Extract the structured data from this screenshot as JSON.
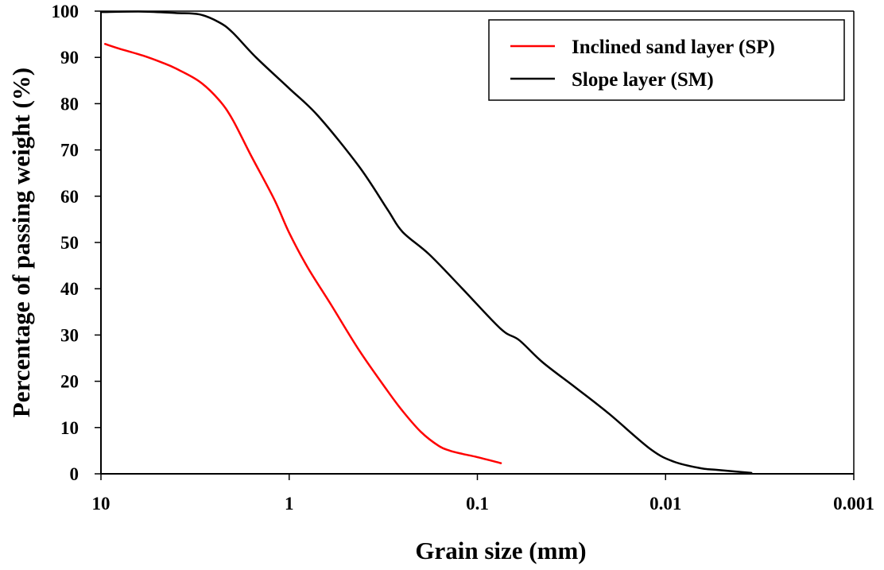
{
  "chart_data": {
    "type": "line",
    "title": "",
    "xlabel": "Grain size (mm)",
    "ylabel": "Percentage of passing weight (%)",
    "x_scale": "log",
    "x_reversed": true,
    "xlim": [
      10,
      0.001
    ],
    "ylim": [
      0,
      100
    ],
    "x_ticks": [
      10,
      1,
      0.1,
      0.01,
      0.001
    ],
    "x_tick_labels": [
      "10",
      "1",
      "0.1",
      "0.01",
      "0.001"
    ],
    "y_ticks": [
      0,
      10,
      20,
      30,
      40,
      50,
      60,
      70,
      80,
      90,
      100
    ],
    "y_tick_labels": [
      "0",
      "10",
      "20",
      "30",
      "40",
      "50",
      "60",
      "70",
      "80",
      "90",
      "100"
    ],
    "grid": false,
    "legend_position": "top-right",
    "series": [
      {
        "name": "Inclined sand layer (SP)",
        "color": "#ff0000",
        "x": [
          9.5,
          8,
          6,
          4.75,
          4,
          3,
          2.36,
          2,
          1.6,
          1.2,
          1,
          0.8,
          0.6,
          0.425,
          0.3,
          0.25,
          0.2,
          0.16,
          0.14,
          0.12,
          0.1,
          0.075
        ],
        "y": [
          92.9,
          91.9,
          90.4,
          88.9,
          87.6,
          84.8,
          80.8,
          76.6,
          68.9,
          59.3,
          52.1,
          44.7,
          36.6,
          26.7,
          17.9,
          13.6,
          9.1,
          6.0,
          5.0,
          4.3,
          3.6,
          2.3
        ]
      },
      {
        "name": "Slope layer (SM)",
        "color": "#000000",
        "x": [
          10,
          6,
          4,
          3,
          2.36,
          2,
          1.5,
          1,
          0.7,
          0.425,
          0.3,
          0.25,
          0.18,
          0.12,
          0.075,
          0.06,
          0.045,
          0.03,
          0.02,
          0.012,
          0.009,
          0.0065,
          0.0055,
          0.0035
        ],
        "y": [
          99.8,
          99.9,
          99.6,
          99.3,
          97.6,
          95.4,
          90.0,
          83.3,
          77.3,
          66.4,
          57.1,
          52.3,
          47.4,
          40.0,
          31.3,
          28.9,
          24.1,
          18.6,
          13.0,
          5.3,
          2.6,
          1.2,
          0.9,
          0.2
        ]
      }
    ]
  }
}
